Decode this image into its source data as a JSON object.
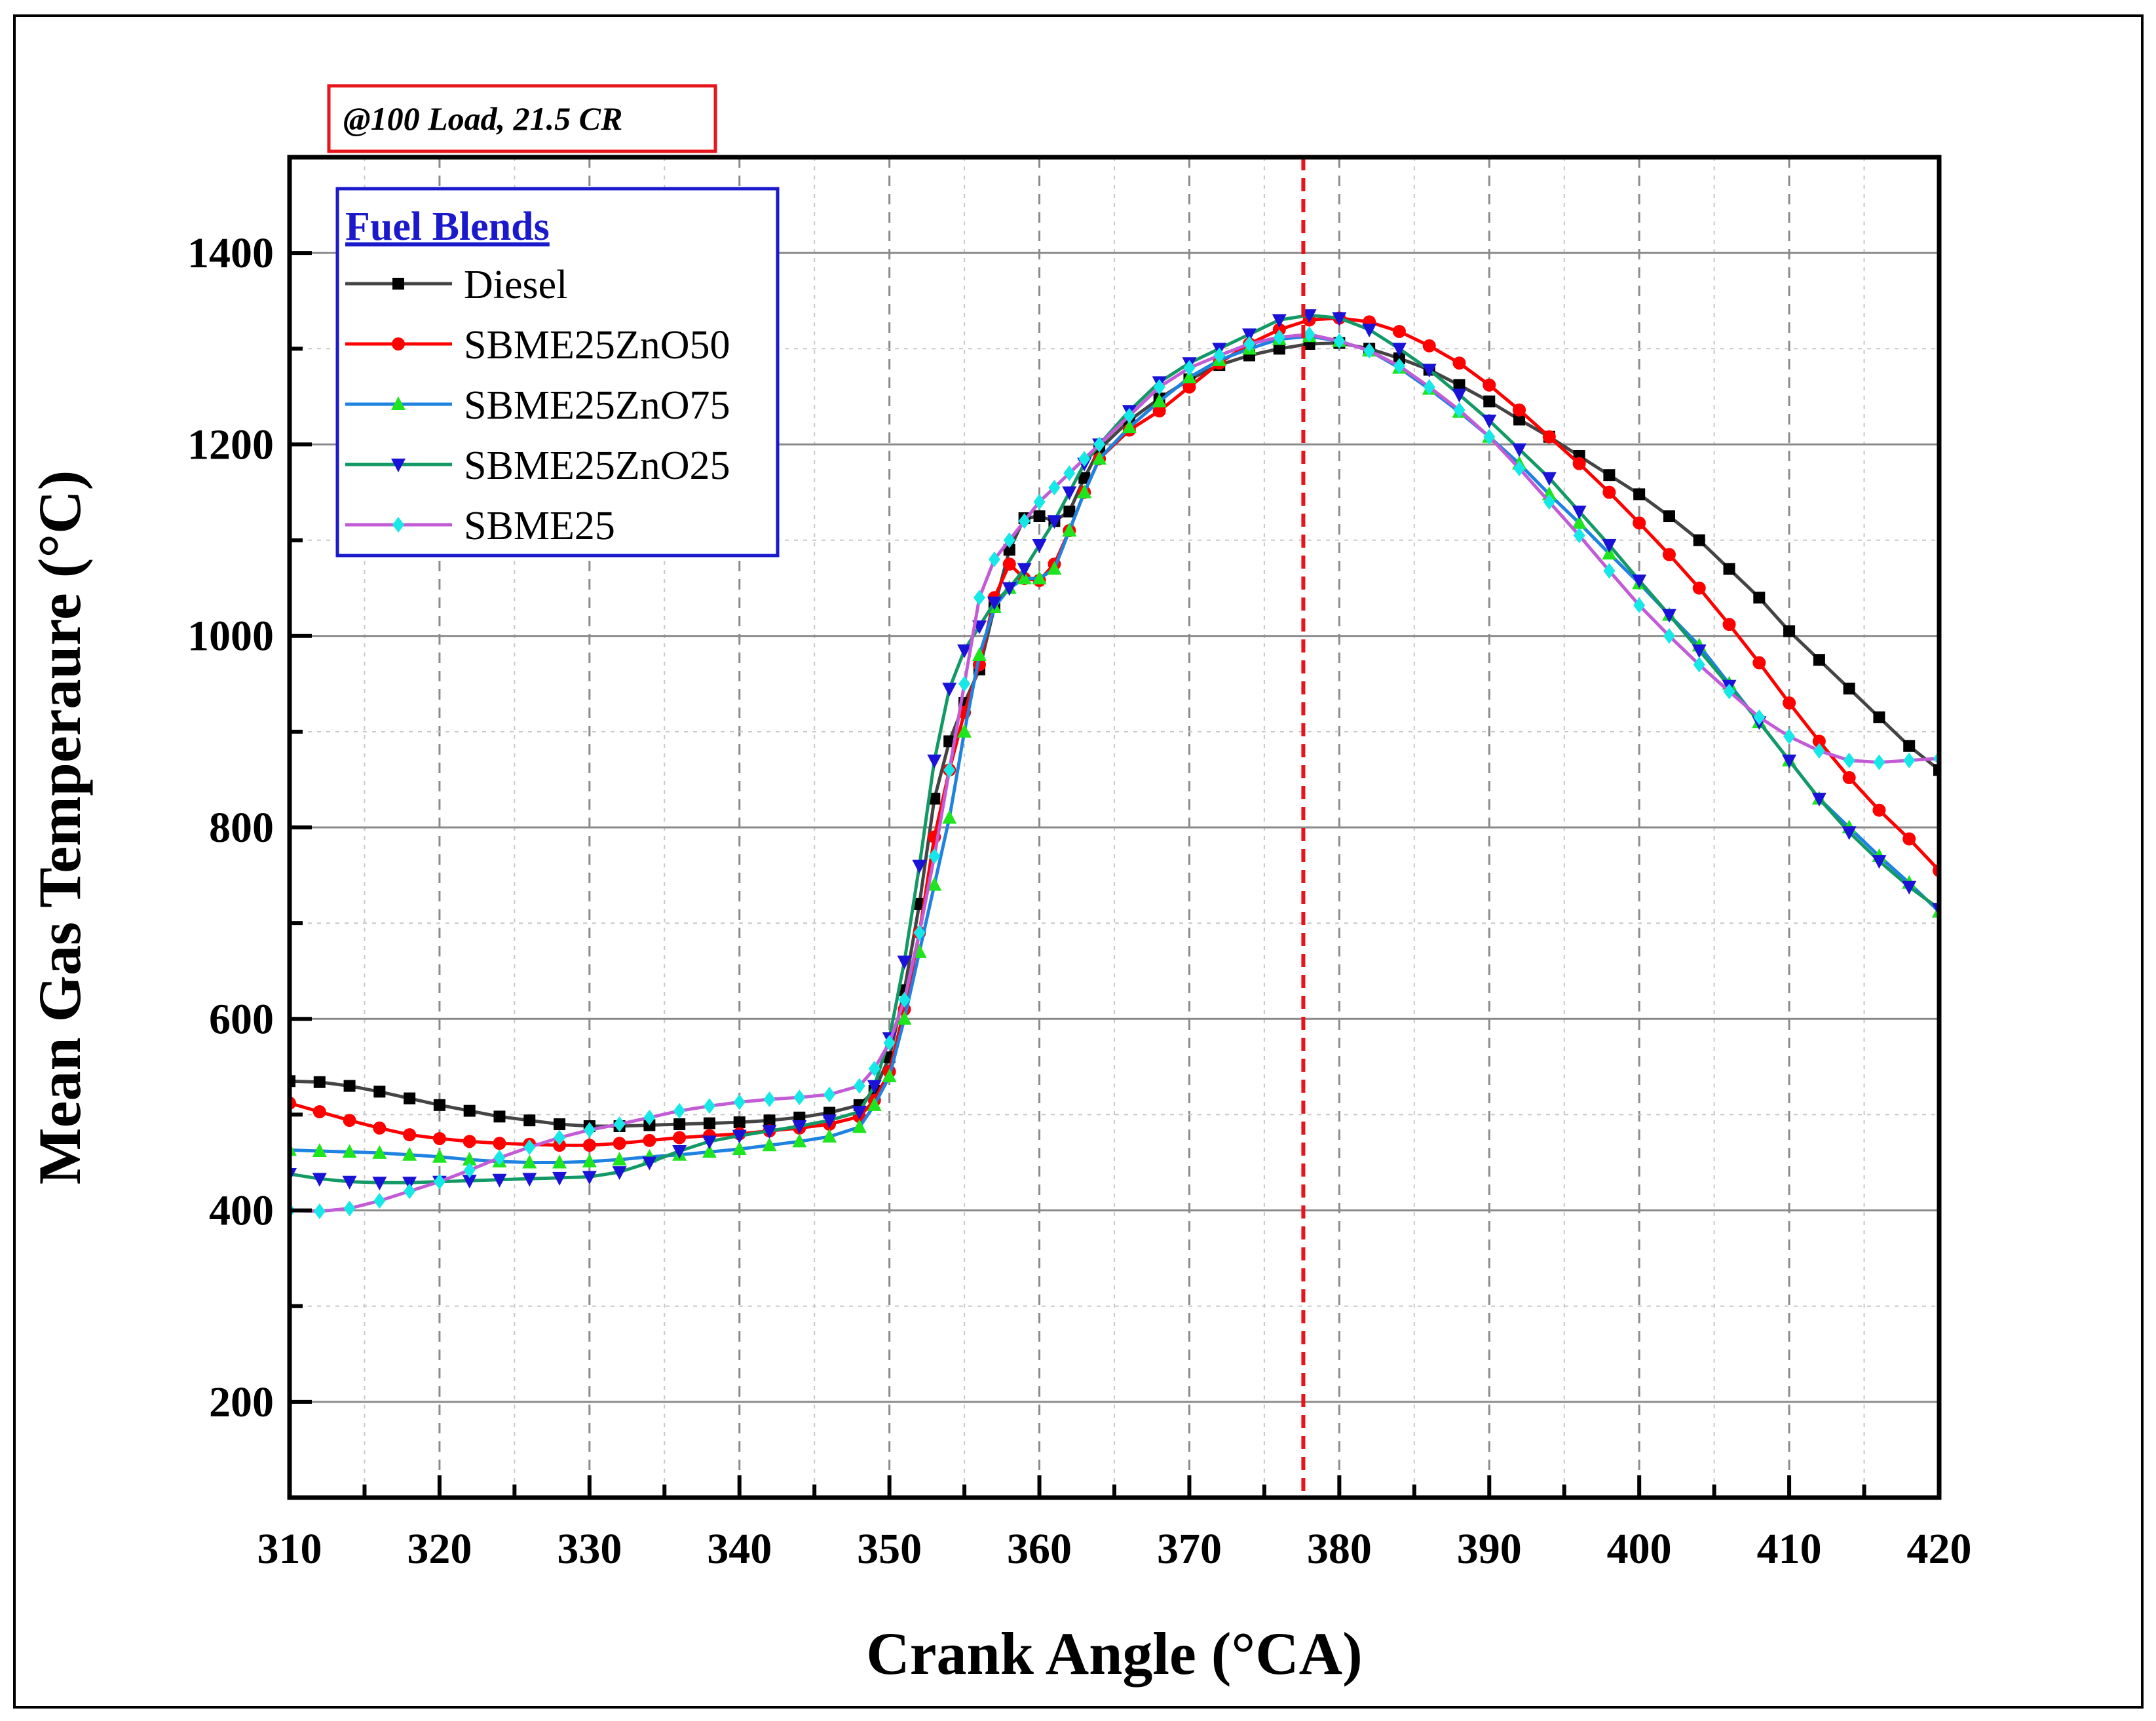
{
  "chart_data": {
    "type": "line",
    "title": "",
    "annotation": "@100 Load, 21.5 CR",
    "xlabel": "Crank Angle (°CA)",
    "ylabel": "Mean Gas Temperaure (°C)",
    "xlim": [
      310,
      420
    ],
    "ylim": [
      100,
      1500
    ],
    "xticks": [
      310,
      320,
      330,
      340,
      350,
      360,
      370,
      380,
      390,
      400,
      410,
      420
    ],
    "yticks": [
      200,
      400,
      600,
      800,
      1000,
      1200,
      1400
    ],
    "grid": true,
    "reference_line": {
      "x": 377.6,
      "color": "#e8141c",
      "style": "dashed"
    },
    "legend": {
      "title": "Fuel Blends",
      "placement": "top-left"
    },
    "series": [
      {
        "name": "Diesel",
        "color": "#000000",
        "line_color": "#444444",
        "marker": "square",
        "x": [
          310,
          312,
          314,
          316,
          318,
          320,
          322,
          324,
          326,
          328,
          330,
          332,
          334,
          336,
          338,
          340,
          342,
          344,
          346,
          348,
          349,
          350,
          351,
          352,
          353,
          354,
          355,
          356,
          357,
          358,
          359,
          360,
          361,
          362,
          363,
          364,
          366,
          368,
          370,
          372,
          374,
          376,
          378,
          380,
          382,
          384,
          386,
          388,
          390,
          392,
          394,
          396,
          398,
          400,
          402,
          404,
          406,
          408,
          410,
          412,
          414,
          416,
          418,
          420
        ],
        "y": [
          535,
          534,
          530,
          524,
          517,
          510,
          504,
          498,
          494,
          490,
          488,
          488,
          489,
          490,
          491,
          492,
          494,
          497,
          502,
          510,
          525,
          560,
          630,
          720,
          830,
          890,
          930,
          965,
          1030,
          1090,
          1123,
          1125,
          1120,
          1130,
          1165,
          1195,
          1225,
          1248,
          1268,
          1283,
          1293,
          1300,
          1305,
          1306,
          1300,
          1290,
          1278,
          1262,
          1245,
          1226,
          1208,
          1188,
          1168,
          1148,
          1125,
          1100,
          1070,
          1040,
          1005,
          975,
          945,
          915,
          885,
          860
        ]
      },
      {
        "name": "SBME25ZnO50",
        "color": "#ff0000",
        "line_color": "#ff0000",
        "marker": "circle",
        "x": [
          310,
          312,
          314,
          316,
          318,
          320,
          322,
          324,
          326,
          328,
          330,
          332,
          334,
          336,
          338,
          340,
          342,
          344,
          346,
          348,
          349,
          350,
          351,
          352,
          353,
          354,
          355,
          356,
          357,
          358,
          359,
          360,
          361,
          362,
          363,
          364,
          366,
          368,
          370,
          372,
          374,
          376,
          378,
          380,
          382,
          384,
          386,
          388,
          390,
          392,
          394,
          396,
          398,
          400,
          402,
          404,
          406,
          408,
          410,
          412,
          414,
          416,
          418,
          420
        ],
        "y": [
          512,
          503,
          494,
          486,
          479,
          475,
          472,
          470,
          469,
          468,
          468,
          470,
          473,
          476,
          478,
          480,
          483,
          486,
          490,
          498,
          515,
          545,
          610,
          690,
          790,
          860,
          920,
          970,
          1040,
          1075,
          1060,
          1058,
          1075,
          1110,
          1150,
          1185,
          1215,
          1235,
          1260,
          1285,
          1305,
          1320,
          1330,
          1332,
          1328,
          1318,
          1303,
          1285,
          1262,
          1236,
          1208,
          1180,
          1150,
          1118,
          1085,
          1050,
          1012,
          972,
          930,
          890,
          852,
          818,
          788,
          755
        ]
      },
      {
        "name": "SBME25ZnO75",
        "color": "#1ee51e",
        "line_color": "#1e82e0",
        "marker": "triangle-up",
        "x": [
          310,
          312,
          314,
          316,
          318,
          320,
          322,
          324,
          326,
          328,
          330,
          332,
          334,
          336,
          338,
          340,
          342,
          344,
          346,
          348,
          349,
          350,
          351,
          352,
          353,
          354,
          355,
          356,
          357,
          358,
          359,
          360,
          361,
          362,
          363,
          364,
          366,
          368,
          370,
          372,
          374,
          376,
          378,
          380,
          382,
          384,
          386,
          388,
          390,
          392,
          394,
          396,
          398,
          400,
          402,
          404,
          406,
          408,
          410,
          412,
          414,
          416,
          418,
          420
        ],
        "y": [
          463,
          462,
          461,
          460,
          458,
          456,
          453,
          451,
          450,
          450,
          451,
          453,
          456,
          458,
          461,
          464,
          468,
          472,
          477,
          487,
          510,
          540,
          600,
          670,
          740,
          810,
          900,
          980,
          1030,
          1050,
          1060,
          1060,
          1070,
          1110,
          1150,
          1185,
          1218,
          1245,
          1270,
          1288,
          1300,
          1310,
          1313,
          1308,
          1298,
          1280,
          1258,
          1234,
          1208,
          1180,
          1148,
          1118,
          1086,
          1055,
          1022,
          990,
          950,
          910,
          870,
          830,
          800,
          770,
          742,
          712
        ]
      },
      {
        "name": "SBME25ZnO25",
        "color": "#1a12d6",
        "line_color": "#129966",
        "marker": "triangle-down",
        "x": [
          310,
          312,
          314,
          316,
          318,
          320,
          322,
          324,
          326,
          328,
          330,
          332,
          334,
          336,
          338,
          340,
          342,
          344,
          346,
          348,
          349,
          350,
          351,
          352,
          353,
          354,
          355,
          356,
          357,
          358,
          359,
          360,
          361,
          362,
          363,
          364,
          366,
          368,
          370,
          372,
          374,
          376,
          378,
          380,
          382,
          384,
          386,
          388,
          390,
          392,
          394,
          396,
          398,
          400,
          402,
          404,
          406,
          408,
          410,
          412,
          414,
          416,
          418,
          420
        ],
        "y": [
          438,
          433,
          430,
          429,
          429,
          430,
          431,
          432,
          433,
          434,
          435,
          440,
          450,
          462,
          472,
          478,
          483,
          488,
          494,
          503,
          530,
          580,
          660,
          760,
          870,
          945,
          985,
          1010,
          1035,
          1050,
          1070,
          1095,
          1120,
          1150,
          1180,
          1200,
          1235,
          1265,
          1285,
          1300,
          1315,
          1330,
          1335,
          1332,
          1320,
          1300,
          1278,
          1252,
          1225,
          1195,
          1165,
          1130,
          1095,
          1058,
          1022,
          985,
          948,
          910,
          870,
          830,
          795,
          765,
          738,
          715
        ]
      },
      {
        "name": "SBME25",
        "color": "#16e8e8",
        "line_color": "#c25cd6",
        "marker": "diamond",
        "x": [
          310,
          312,
          314,
          316,
          318,
          320,
          322,
          324,
          326,
          328,
          330,
          332,
          334,
          336,
          338,
          340,
          342,
          344,
          346,
          348,
          349,
          350,
          351,
          352,
          353,
          354,
          355,
          356,
          357,
          358,
          359,
          360,
          361,
          362,
          363,
          364,
          366,
          368,
          370,
          372,
          374,
          376,
          378,
          380,
          382,
          384,
          386,
          388,
          390,
          392,
          394,
          396,
          398,
          400,
          402,
          404,
          406,
          408,
          410,
          412,
          414,
          416,
          418,
          420
        ],
        "y": [
          400,
          399,
          402,
          410,
          420,
          430,
          442,
          455,
          466,
          476,
          484,
          490,
          497,
          504,
          509,
          513,
          516,
          518,
          521,
          530,
          548,
          575,
          620,
          690,
          770,
          860,
          950,
          1040,
          1080,
          1100,
          1120,
          1140,
          1155,
          1170,
          1185,
          1200,
          1230,
          1260,
          1280,
          1293,
          1305,
          1312,
          1315,
          1308,
          1298,
          1282,
          1260,
          1236,
          1208,
          1175,
          1140,
          1105,
          1068,
          1032,
          1000,
          970,
          942,
          915,
          895,
          880,
          870,
          868,
          870,
          872
        ]
      }
    ]
  }
}
